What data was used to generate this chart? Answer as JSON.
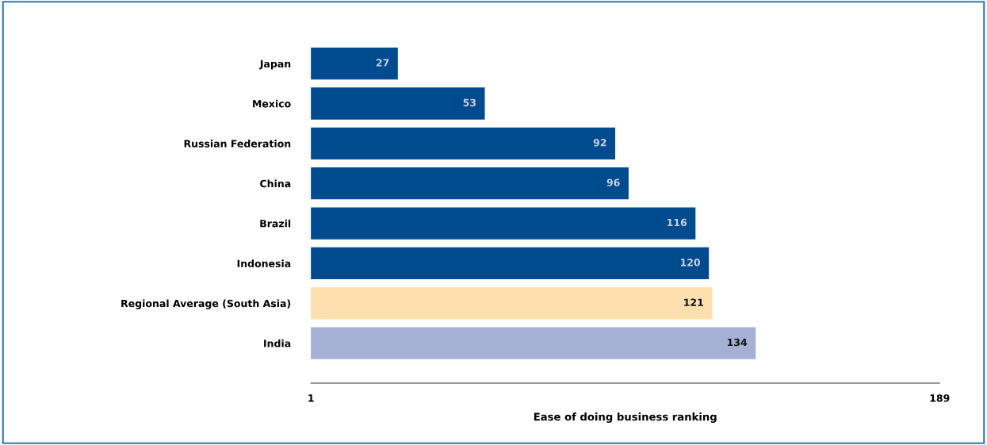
{
  "chart_data": {
    "type": "bar",
    "orientation": "horizontal",
    "categories": [
      "Japan",
      "Mexico",
      "Russian Federation",
      "China",
      "Brazil",
      "Indonesia",
      "Regional Average (South Asia)",
      "India"
    ],
    "values": [
      27,
      53,
      92,
      96,
      116,
      120,
      121,
      134
    ],
    "colors": [
      "#004b8d",
      "#004b8d",
      "#004b8d",
      "#004b8d",
      "#004b8d",
      "#004b8d",
      "#fde0ad",
      "#a4b0d4"
    ],
    "xlabel": "Ease of doing business ranking",
    "xlim": [
      1,
      189
    ],
    "xticks": [
      1,
      189
    ],
    "data_labels": true,
    "grid": false,
    "legend": false
  }
}
